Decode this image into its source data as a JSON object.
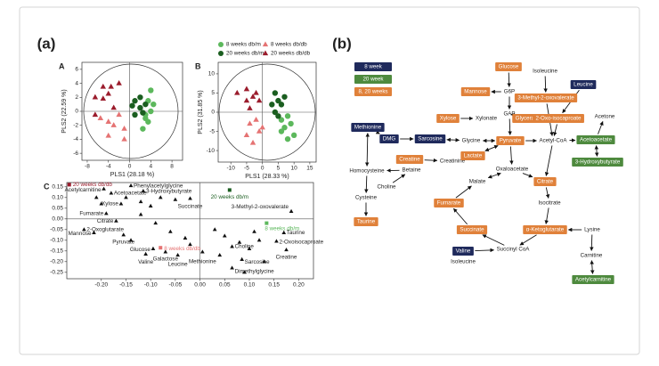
{
  "panel_a": {
    "label": "(a)"
  },
  "panel_b": {
    "label": "(b)"
  },
  "chart_data": [
    {
      "type": "scatter",
      "panel": "A",
      "xlabel": "PLS1 (28.18 %)",
      "ylabel": "PLS2 (22.59 %)",
      "xlim": [
        -9,
        10
      ],
      "ylim": [
        -7,
        7
      ],
      "xticks": [
        -8,
        -4,
        0,
        4,
        8
      ],
      "yticks": [
        -6,
        -4,
        -2,
        0,
        2,
        4,
        6
      ],
      "series": [
        {
          "name": "8 weeks db/m",
          "color": "#5cb85c",
          "marker": "circle",
          "x": [
            4,
            3.5,
            4,
            3,
            3.5,
            2.5,
            3,
            4.5
          ],
          "y": [
            3,
            1.5,
            0,
            -1,
            -1.5,
            -2.5,
            -0.5,
            1
          ]
        },
        {
          "name": "8 weeks db/db",
          "color": "#e57373",
          "marker": "triangle",
          "x": [
            -3,
            -4,
            -2,
            -1,
            -4,
            -1,
            -5.5
          ],
          "y": [
            -2,
            -1.5,
            -0.5,
            -2.5,
            -3.5,
            -4,
            -1
          ]
        },
        {
          "name": "20 weeks db/m",
          "color": "#1b5e20",
          "marker": "circle",
          "x": [
            1,
            2,
            2,
            1,
            3,
            2.5,
            0.5
          ],
          "y": [
            1.5,
            2,
            0.5,
            -0.5,
            1,
            -0.2,
            0.8
          ]
        },
        {
          "name": "20 weeks db/db",
          "color": "#9b1c2c",
          "marker": "triangle",
          "x": [
            -4,
            -5,
            -6.5,
            -3.5,
            -2,
            -6.5,
            -3,
            -5
          ],
          "y": [
            2.5,
            1.8,
            2,
            3.5,
            4,
            -0.5,
            0.5,
            3.5
          ]
        }
      ]
    },
    {
      "type": "scatter",
      "panel": "B",
      "xlabel": "PLS1 (28.33 %)",
      "ylabel": "PLS2 (31.85 %)",
      "xlim": [
        -14,
        17
      ],
      "ylim": [
        -13,
        13
      ],
      "xticks": [
        -10,
        -5,
        0,
        5,
        10,
        15
      ],
      "yticks": [
        -10,
        -5,
        0,
        5,
        10
      ],
      "series": [
        {
          "color": "#5cb85c",
          "marker": "circle",
          "x": [
            6,
            8,
            7,
            9,
            6,
            10,
            8
          ],
          "y": [
            -2,
            -1,
            -4,
            -3,
            -5,
            -6,
            -7
          ]
        },
        {
          "color": "#e57373",
          "marker": "triangle",
          "x": [
            -2,
            -4,
            -1,
            -5,
            -3,
            0
          ],
          "y": [
            -2,
            -3,
            -5,
            -6,
            -8,
            -4
          ]
        },
        {
          "color": "#1b5e20",
          "marker": "circle",
          "x": [
            4,
            5,
            3,
            6,
            4,
            7,
            5
          ],
          "y": [
            5,
            3,
            2,
            2,
            0,
            4,
            -1
          ]
        },
        {
          "color": "#9b1c2c",
          "marker": "triangle",
          "x": [
            -5,
            -2,
            -5,
            -3,
            -8,
            -1,
            -4
          ],
          "y": [
            6,
            5,
            3,
            4,
            5,
            3,
            1
          ]
        }
      ]
    },
    {
      "type": "scatter",
      "panel": "C",
      "xlim": [
        -0.27,
        0.23
      ],
      "ylim": [
        -0.28,
        0.17
      ],
      "xticks": [
        {
          "value": -0.2,
          "label": "-0.20"
        },
        -0.15,
        {
          "value": -0.1,
          "label": "-0.10"
        },
        -0.05,
        {
          "value": 0,
          "label": "0.00"
        },
        0.05,
        {
          "value": 0.1,
          "label": "0.10"
        },
        0.15,
        {
          "value": 0.2,
          "label": "0.20"
        }
      ],
      "yticks": [
        0.15,
        {
          "value": 0.1,
          "label": "0.10"
        },
        0.05,
        {
          "value": 0,
          "label": "0.00"
        },
        -0.05,
        {
          "value": -0.1,
          "label": "-0.10"
        },
        -0.15,
        {
          "value": -0.2,
          "label": "-0.20"
        },
        -0.25
      ],
      "series": [
        {
          "color": "#111111",
          "marker": "triangle",
          "x": [
            -0.195,
            -0.14,
            -0.18,
            -0.115,
            -0.16,
            -0.02,
            -0.19,
            -0.17,
            -0.235,
            -0.215,
            -0.155,
            -0.095,
            -0.07,
            -0.11,
            -0.045,
            0.005,
            0.065,
            0.085,
            0.065,
            0.17,
            0.155,
            0.175,
            0.185,
            -0.21,
            -0.2,
            -0.15,
            -0.12,
            -0.1,
            -0.08,
            -0.05,
            -0.12,
            -0.09,
            -0.06,
            -0.03,
            0.03,
            0.05,
            0.08,
            0.1,
            0.12,
            0.13,
            0.09,
            -0.14,
            -0.02,
            0.04,
            0.11
          ],
          "y": [
            0.14,
            0.155,
            0.12,
            0.13,
            0.07,
            0.095,
            0.025,
            -0.01,
            -0.05,
            -0.065,
            -0.075,
            -0.14,
            -0.155,
            -0.165,
            -0.17,
            -0.155,
            -0.13,
            -0.19,
            -0.23,
            -0.065,
            -0.105,
            -0.145,
            0.035,
            0.1,
            0.07,
            0.1,
            0.08,
            0.06,
            0.1,
            0.09,
            0.02,
            -0.02,
            -0.06,
            -0.09,
            -0.05,
            -0.08,
            -0.11,
            -0.14,
            -0.1,
            -0.2,
            -0.25,
            -0.1,
            -0.12,
            -0.17,
            -0.06
          ],
          "labels": [
            "Acetylcarnitine",
            "Phenylacetylglycine",
            "Acetoacetate",
            "3-Hydroxybutyrate",
            "Xylose",
            "Succinate",
            "Fumarate",
            "Citrate",
            "2-Oxoglutarate",
            "Mannose",
            "Pyruvate",
            "Glucose",
            "Galactose",
            "Valine",
            "Leucine",
            "Methionine",
            "Choline",
            "Sarcosine",
            "Dimethylglycine",
            "Taurine",
            "2-Oxoisocaproate",
            "Creatine",
            "3-Methyl-2-oxovalerate",
            null,
            null,
            null,
            null,
            null,
            null,
            null,
            null,
            null,
            null,
            null,
            null,
            null,
            null,
            null,
            null,
            null,
            null,
            null,
            null,
            null,
            null
          ]
        },
        {
          "marker": "dot",
          "x": [
            -0.265,
            0.06,
            0.135,
            -0.08
          ],
          "y": [
            0.16,
            0.135,
            -0.02,
            -0.135
          ],
          "labels": [
            "20 weeks db/db",
            "20 weeks db/m",
            "8 weeks db/m",
            "8 weeks db/db"
          ],
          "colors": [
            "#9b1c2c",
            "#1b5e20",
            "#5cb85c",
            "#e57373"
          ]
        }
      ]
    }
  ],
  "diagram": {
    "legend": [
      {
        "label": "8 week",
        "color": "#1f2a5c"
      },
      {
        "label": "20 week",
        "color": "#4e8a3e"
      },
      {
        "label": "8, 20 weeks",
        "color": "#e0813a"
      }
    ],
    "nodes": [
      {
        "label": "Glucose",
        "color": "#e0813a"
      },
      {
        "label": "Isoleucine"
      },
      {
        "label": "Mannose",
        "color": "#e0813a"
      },
      {
        "label": "G6P"
      },
      {
        "label": "3-Methyl-2-oxovalerate",
        "color": "#e0813a"
      },
      {
        "label": "Leucine",
        "color": "#1f2a5c"
      },
      {
        "label": "Xylose",
        "color": "#e0813a"
      },
      {
        "label": "GAP"
      },
      {
        "label": "Glycerate",
        "color": "#e0813a"
      },
      {
        "label": "2-Oxo-isocaproate",
        "color": "#e0813a"
      },
      {
        "label": "Acetone"
      },
      {
        "label": "Xylonate"
      },
      {
        "label": "Methionine",
        "color": "#1f2a5c"
      },
      {
        "label": "DMG",
        "color": "#1f2a5c"
      },
      {
        "label": "Sarcosine",
        "color": "#1f2a5c"
      },
      {
        "label": "Glycine"
      },
      {
        "label": "Pyruvate",
        "color": "#e0813a"
      },
      {
        "label": "Acetyl-CoA"
      },
      {
        "label": "Acetoacetate",
        "color": "#4e8a3e"
      },
      {
        "label": "Betaine"
      },
      {
        "label": "Creatine",
        "color": "#e0813a"
      },
      {
        "label": "Creatinine"
      },
      {
        "label": "Lactate",
        "color": "#e0813a"
      },
      {
        "label": "3-Hydroxybutyrate",
        "color": "#4e8a3e"
      },
      {
        "label": "Oxaloacetate"
      },
      {
        "label": "Homocysteine"
      },
      {
        "label": "Choline"
      },
      {
        "label": "Cysteine"
      },
      {
        "label": "Malate"
      },
      {
        "label": "Citrate",
        "color": "#e0813a"
      },
      {
        "label": "Fumarate",
        "color": "#e0813a"
      },
      {
        "label": "Isocitrate"
      },
      {
        "label": "Taurine",
        "color": "#e0813a"
      },
      {
        "label": "Succinate",
        "color": "#e0813a"
      },
      {
        "label": "α-Ketoglutarate",
        "color": "#e0813a"
      },
      {
        "label": "Lysine"
      },
      {
        "label": "Succinyl CoA"
      },
      {
        "label": "Valine",
        "color": "#1f2a5c"
      },
      {
        "label": "Isoleucine"
      },
      {
        "label": "Carnitine"
      },
      {
        "label": "Acetylcarnitine",
        "color": "#4e8a3e"
      }
    ]
  }
}
